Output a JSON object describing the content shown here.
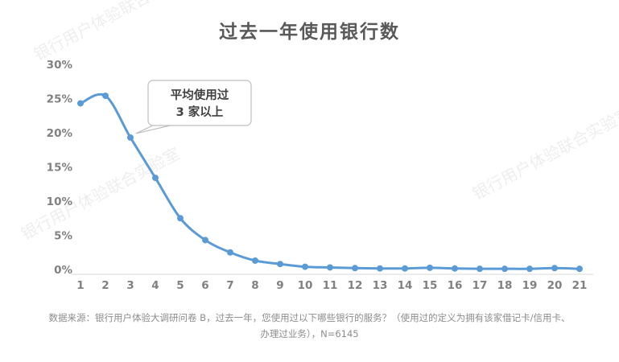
{
  "title": "过去一年使用银行数",
  "watermark": {
    "text": "银行用户体验联合实验室"
  },
  "annotation": {
    "lines": [
      "平均使用过",
      "3 家以上"
    ]
  },
  "footer": "数据来源：银行用户体验大调研问卷 B，过去一年，您使用过以下哪些银行的服务？（使用过的定义为拥有该家借记卡/信用卡、办理过业务），N=6145",
  "colors": {
    "line": "#5B9BD5",
    "marker": "#5B9BD5",
    "axis_line": "#D9D9D9",
    "tick_text": "#808080",
    "title_text": "#595959",
    "callout_fill": "#FFFFFF",
    "callout_border": "#BFBFBF",
    "callout_text": "#404040"
  },
  "chart_data": {
    "type": "line",
    "title": "过去一年使用银行数",
    "xlabel": "",
    "ylabel": "",
    "x": [
      1,
      2,
      3,
      4,
      5,
      6,
      7,
      8,
      9,
      10,
      11,
      12,
      13,
      14,
      15,
      16,
      17,
      18,
      19,
      20,
      21
    ],
    "values": [
      24.3,
      25.4,
      19.3,
      13.4,
      7.5,
      4.3,
      2.5,
      1.3,
      0.8,
      0.4,
      0.3,
      0.2,
      0.15,
      0.15,
      0.25,
      0.15,
      0.1,
      0.1,
      0.1,
      0.2,
      0.1
    ],
    "ylim": [
      0,
      30
    ],
    "ytick_labels": [
      "0%",
      "5%",
      "10%",
      "15%",
      "20%",
      "25%",
      "30%"
    ],
    "ytick_step": 5,
    "grid": false,
    "legend": "none",
    "annotation": {
      "text": "平均使用过 3 家以上",
      "anchor_x": 3
    }
  }
}
